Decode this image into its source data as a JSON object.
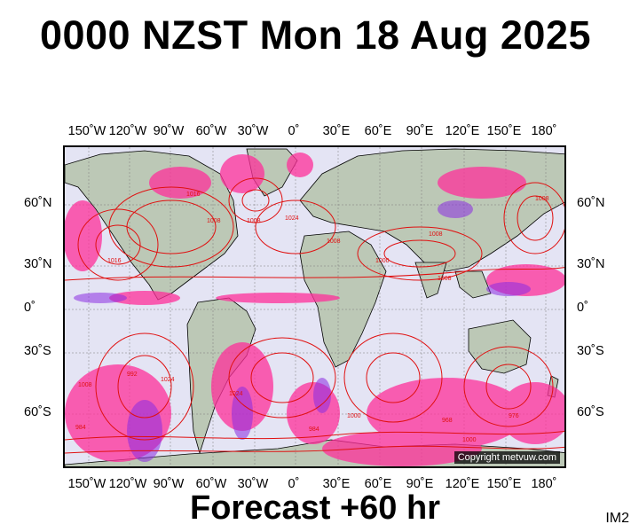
{
  "title": "0000 NZST Mon 18 Aug 2025",
  "subtitle": "Forecast +60 hr",
  "tag": "IM2",
  "copyright": "Copyright metvuw.com",
  "longitude_labels": [
    "150˚W",
    "120˚W",
    "90˚W",
    "60˚W",
    "30˚W",
    "0˚",
    "30˚E",
    "60˚E",
    "90˚E",
    "120˚E",
    "150˚E",
    "180˚"
  ],
  "latitude_labels": [
    "60˚N",
    "30˚N",
    "0˚",
    "30˚S",
    "60˚S"
  ],
  "pressure_labels": [
    "1024",
    "1016",
    "1008",
    "1000",
    "992",
    "984",
    "976",
    "968"
  ],
  "colors": {
    "isobar": "#e01010",
    "precip": "#ff2f9a",
    "precip_heavy": "#8a2be2",
    "land": "#bcc8b6",
    "ocean": "#e4e4f4"
  }
}
